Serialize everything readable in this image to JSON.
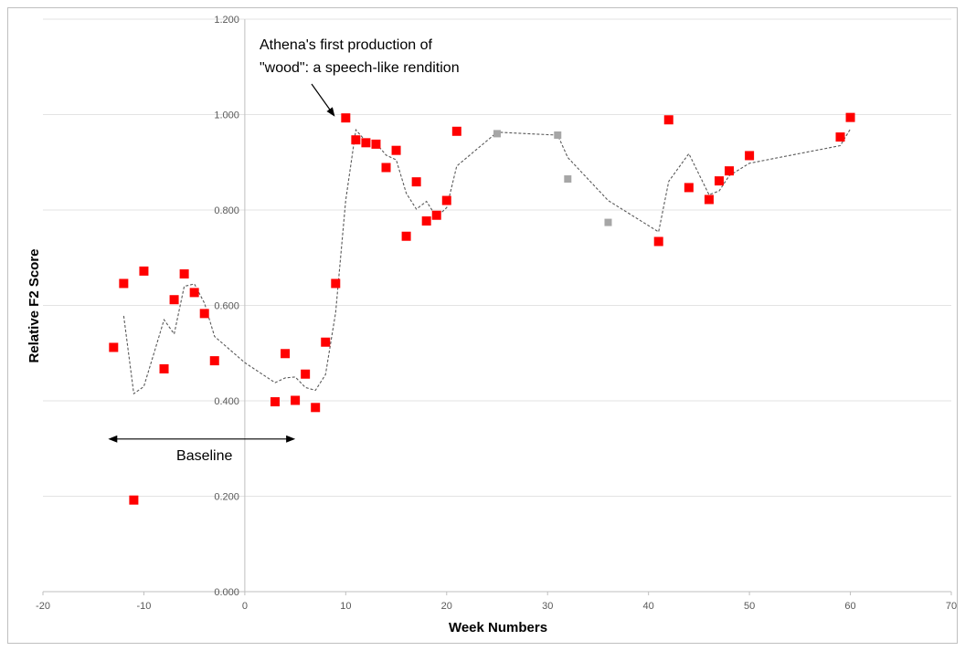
{
  "chart_data": {
    "type": "scatter",
    "xlabel": "Week Numbers",
    "ylabel": "Relative F2 Score",
    "xlim": [
      -20,
      70
    ],
    "ylim": [
      0,
      1.2
    ],
    "x_ticks": [
      "-20",
      "-10",
      "0",
      "10",
      "20",
      "30",
      "40",
      "50",
      "60",
      "70"
    ],
    "y_ticks": [
      "0.000",
      "0.200",
      "0.400",
      "0.600",
      "0.800",
      "1.000",
      "1.200"
    ],
    "grid": "horizontal",
    "colors": {
      "primary": "#ff0000",
      "secondary": "#a6a6a6",
      "trend": "#595959"
    },
    "series": [
      {
        "type": "scatter",
        "marker": "square",
        "color": "#ff0000",
        "points": [
          [
            -13,
            0.512
          ],
          [
            -12,
            0.646
          ],
          [
            -11,
            0.192
          ],
          [
            -10,
            0.672
          ],
          [
            -8,
            0.467
          ],
          [
            -7,
            0.612
          ],
          [
            -6,
            0.666
          ],
          [
            -5,
            0.627
          ],
          [
            -4,
            0.583
          ],
          [
            -3,
            0.484
          ],
          [
            3,
            0.398
          ],
          [
            4,
            0.499
          ],
          [
            5,
            0.401
          ],
          [
            6,
            0.456
          ],
          [
            7,
            0.386
          ],
          [
            8,
            0.523
          ],
          [
            9,
            0.646
          ],
          [
            10,
            0.993
          ],
          [
            11,
            0.947
          ],
          [
            12,
            0.941
          ],
          [
            13,
            0.938
          ],
          [
            14,
            0.889
          ],
          [
            15,
            0.925
          ],
          [
            16,
            0.745
          ],
          [
            17,
            0.859
          ],
          [
            18,
            0.777
          ],
          [
            19,
            0.789
          ],
          [
            20,
            0.82
          ],
          [
            21,
            0.965
          ],
          [
            41,
            0.734
          ],
          [
            42,
            0.989
          ],
          [
            44,
            0.847
          ],
          [
            46,
            0.822
          ],
          [
            47,
            0.861
          ],
          [
            48,
            0.882
          ],
          [
            50,
            0.914
          ],
          [
            59,
            0.953
          ],
          [
            60,
            0.994
          ]
        ]
      },
      {
        "type": "scatter",
        "marker": "square",
        "color": "#a6a6a6",
        "points": [
          [
            25,
            0.96
          ],
          [
            31,
            0.957
          ],
          [
            32,
            0.865
          ],
          [
            36,
            0.774
          ]
        ]
      },
      {
        "type": "line",
        "style": "dashed",
        "color": "#595959",
        "points": [
          [
            -12,
            0.578
          ],
          [
            -11,
            0.415
          ],
          [
            -10,
            0.43
          ],
          [
            -9,
            0.5
          ],
          [
            -8,
            0.57
          ],
          [
            -7,
            0.54
          ],
          [
            -6,
            0.64
          ],
          [
            -5,
            0.645
          ],
          [
            -4,
            0.605
          ],
          [
            -3,
            0.535
          ],
          [
            0,
            0.48
          ],
          [
            3,
            0.438
          ],
          [
            4,
            0.448
          ],
          [
            5,
            0.45
          ],
          [
            6,
            0.428
          ],
          [
            7,
            0.422
          ],
          [
            8,
            0.455
          ],
          [
            9,
            0.585
          ],
          [
            10,
            0.82
          ],
          [
            11,
            0.968
          ],
          [
            12,
            0.944
          ],
          [
            13,
            0.94
          ],
          [
            14,
            0.915
          ],
          [
            15,
            0.905
          ],
          [
            16,
            0.835
          ],
          [
            17,
            0.802
          ],
          [
            18,
            0.818
          ],
          [
            19,
            0.785
          ],
          [
            20,
            0.805
          ],
          [
            21,
            0.892
          ],
          [
            25,
            0.963
          ],
          [
            31,
            0.957
          ],
          [
            32,
            0.91
          ],
          [
            36,
            0.82
          ],
          [
            41,
            0.754
          ],
          [
            42,
            0.86
          ],
          [
            44,
            0.918
          ],
          [
            46,
            0.832
          ],
          [
            47,
            0.84
          ],
          [
            48,
            0.872
          ],
          [
            50,
            0.898
          ],
          [
            59,
            0.935
          ],
          [
            60,
            0.97
          ]
        ]
      }
    ],
    "annotations": {
      "first_production_line1": "Athena's first production of",
      "first_production_line2": "\"wood\":  a speech-like rendition",
      "baseline": "Baseline",
      "arrow_target": [
        9,
        0.995
      ],
      "baseline_range": [
        -13,
        5
      ],
      "baseline_y": 0.32
    }
  }
}
